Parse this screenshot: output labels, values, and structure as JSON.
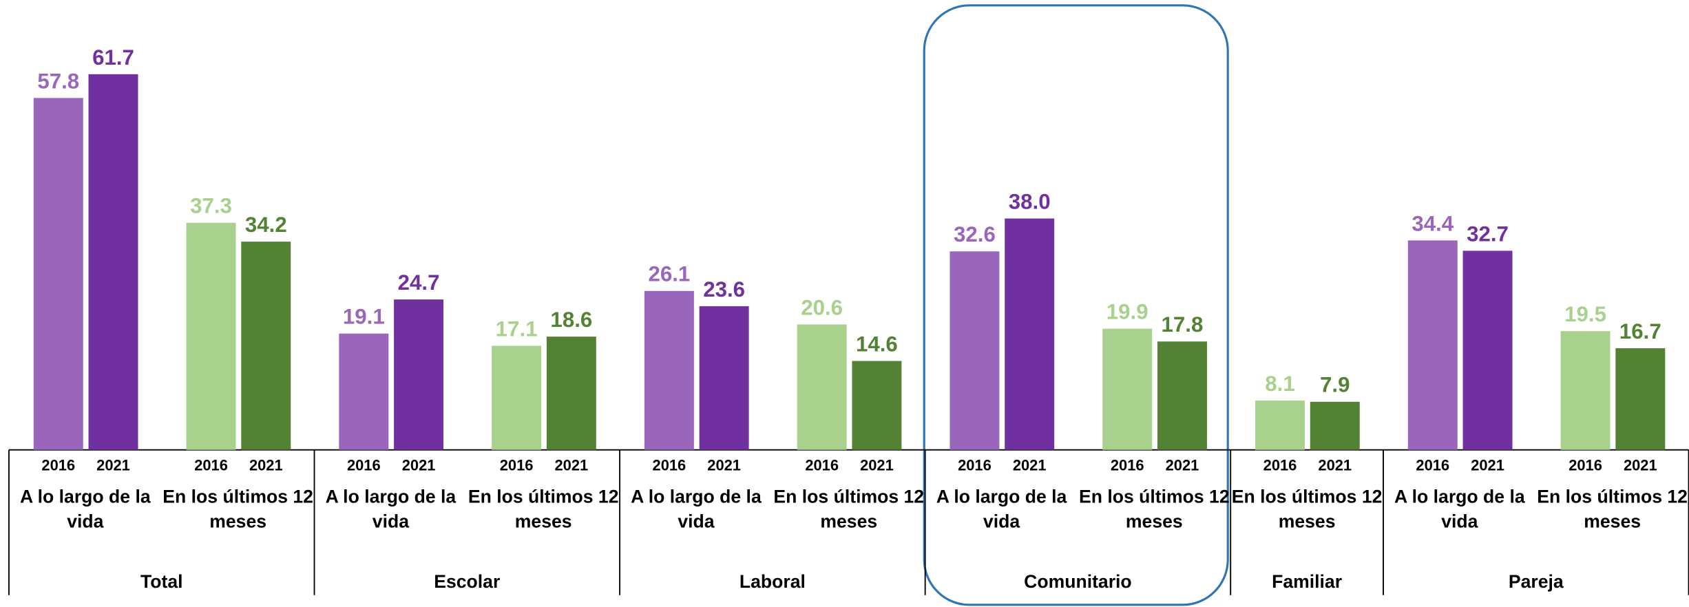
{
  "chart_data": {
    "type": "bar",
    "years": [
      "2016",
      "2021"
    ],
    "ylim": [
      0,
      70
    ],
    "groups": [
      {
        "name": "Total",
        "subgroups": [
          {
            "name": "A lo largo de la vida",
            "colors": [
              "#9966bb",
              "#7030a0"
            ],
            "values": [
              57.8,
              61.7
            ]
          },
          {
            "name": "En los últimos 12 meses",
            "colors": [
              "#a9d18e",
              "#548235"
            ],
            "values": [
              37.3,
              34.2
            ]
          }
        ]
      },
      {
        "name": "Escolar",
        "subgroups": [
          {
            "name": "A lo largo de la vida",
            "colors": [
              "#9966bb",
              "#7030a0"
            ],
            "values": [
              19.1,
              24.7
            ]
          },
          {
            "name": "En los últimos 12 meses",
            "colors": [
              "#a9d18e",
              "#548235"
            ],
            "values": [
              17.1,
              18.6
            ]
          }
        ]
      },
      {
        "name": "Laboral",
        "subgroups": [
          {
            "name": "A lo largo de la vida",
            "colors": [
              "#9966bb",
              "#7030a0"
            ],
            "values": [
              26.1,
              23.6
            ]
          },
          {
            "name": "En los últimos 12 meses",
            "colors": [
              "#a9d18e",
              "#548235"
            ],
            "values": [
              20.6,
              14.6
            ]
          }
        ]
      },
      {
        "name": "Comunitario",
        "subgroups": [
          {
            "name": "A lo largo de la vida",
            "colors": [
              "#9966bb",
              "#7030a0"
            ],
            "values": [
              32.6,
              38
            ],
            "value_labels": [
              "32.6",
              "38.0"
            ]
          },
          {
            "name": "En los últimos 12 meses",
            "colors": [
              "#a9d18e",
              "#548235"
            ],
            "values": [
              19.9,
              17.8
            ]
          }
        ]
      },
      {
        "name": "Familiar",
        "subgroups": [
          {
            "name": "En los últimos 12 meses",
            "colors": [
              "#a9d18e",
              "#548235"
            ],
            "values": [
              8.1,
              7.9
            ]
          }
        ]
      },
      {
        "name": "Pareja",
        "subgroups": [
          {
            "name": "A lo largo de la vida",
            "colors": [
              "#9966bb",
              "#7030a0"
            ],
            "values": [
              34.4,
              32.7
            ]
          },
          {
            "name": "En los últimos 12 meses",
            "colors": [
              "#a9d18e",
              "#548235"
            ],
            "values": [
              19.5,
              16.7
            ]
          }
        ]
      }
    ]
  }
}
